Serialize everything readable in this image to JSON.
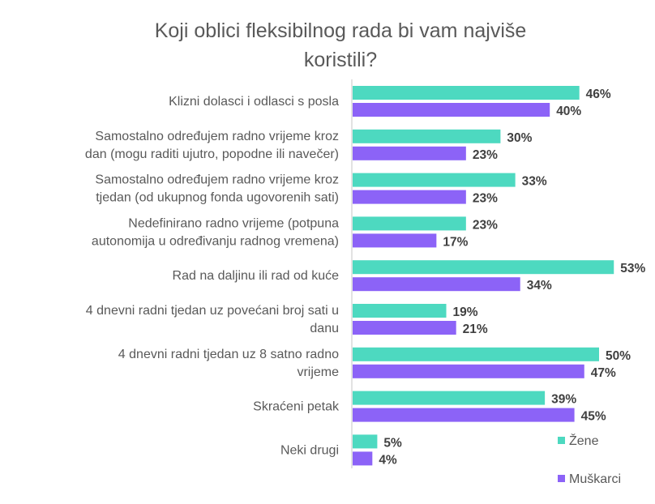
{
  "chart_data": {
    "type": "bar",
    "orientation": "horizontal",
    "title": [
      "Koji oblici fleksibilnog rada bi vam najviše",
      "koristili?"
    ],
    "xlabel": "",
    "ylabel": "",
    "xlim": [
      0,
      55
    ],
    "grid": false,
    "legend_position": "bottom-right",
    "categories": [
      [
        "Klizni dolasci i odlasci s posla"
      ],
      [
        "Samostalno određujem radno vrijeme kroz",
        "dan (mogu raditi ujutro, popodne ili navečer)"
      ],
      [
        "Samostalno određujem radno vrijeme kroz",
        "tjedan (od ukupnog fonda ugovorenih sati)"
      ],
      [
        "Nedefinirano radno vrijeme (potpuna",
        "autonomija u određivanju radnog vremena)"
      ],
      [
        "Rad na daljinu ili rad od kuće"
      ],
      [
        "4 dnevni radni tjedan uz povećani broj sati u",
        "danu"
      ],
      [
        "4 dnevni radni tjedan uz 8 satno radno",
        "vrijeme"
      ],
      [
        "Skraćeni petak"
      ],
      [
        "Neki drugi"
      ]
    ],
    "series": [
      {
        "name": "Žene",
        "color": "#4DD9C0",
        "values": [
          46,
          30,
          33,
          23,
          53,
          19,
          50,
          39,
          5
        ],
        "labels": [
          "46%",
          "30%",
          "33%",
          "23%",
          "53%",
          "19%",
          "50%",
          "39%",
          "5%"
        ]
      },
      {
        "name": "Muškarci",
        "color": "#8C63F7",
        "values": [
          40,
          23,
          23,
          17,
          34,
          21,
          47,
          45,
          4
        ],
        "labels": [
          "40%",
          "23%",
          "23%",
          "17%",
          "34%",
          "21%",
          "47%",
          "45%",
          "4%"
        ]
      }
    ]
  }
}
